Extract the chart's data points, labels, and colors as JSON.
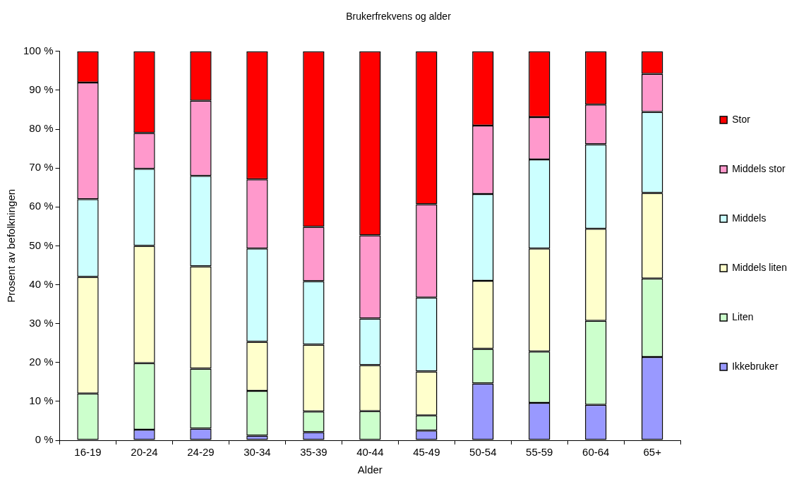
{
  "chart_data": {
    "type": "bar",
    "title": "Brukerfrekvens og alder",
    "xlabel": "Alder",
    "ylabel": "Prosent av befolkningen",
    "categories": [
      "16-19",
      "20-24",
      "24-29",
      "30-34",
      "35-39",
      "40-44",
      "45-49",
      "50-54",
      "55-59",
      "60-64",
      "65+"
    ],
    "stacked": true,
    "legend": "right",
    "grid": false,
    "ylim": [
      0,
      100
    ],
    "yticks": [
      {
        "value": 0,
        "label": "0 %"
      },
      {
        "value": 10,
        "label": "10 %"
      },
      {
        "value": 20,
        "label": "20 %"
      },
      {
        "value": 30,
        "label": "30 %"
      },
      {
        "value": 40,
        "label": "40 %"
      },
      {
        "value": 50,
        "label": "50 %"
      },
      {
        "value": 60,
        "label": "60 %"
      },
      {
        "value": 70,
        "label": "70 %"
      },
      {
        "value": 80,
        "label": "80 %"
      },
      {
        "value": 90,
        "label": "90 %"
      },
      {
        "value": 100,
        "label": "100 %"
      }
    ],
    "series": [
      {
        "name": "Ikkebruker",
        "color": "#9999ff",
        "values": [
          0,
          2.7,
          3,
          1.2,
          2.1,
          0,
          2.5,
          14.6,
          9.6,
          9.1,
          21.4
        ]
      },
      {
        "name": "Liten",
        "color": "#ccffcc",
        "values": [
          12,
          17.1,
          15.4,
          11.5,
          5.3,
          7.5,
          3.9,
          8.9,
          13.2,
          21.6,
          20.2
        ]
      },
      {
        "name": "Middels liten",
        "color": "#ffffcc",
        "values": [
          30,
          30.2,
          26.3,
          12.6,
          17.2,
          11.8,
          11.3,
          17.5,
          26.5,
          23.7,
          22
        ]
      },
      {
        "name": "Middels",
        "color": "#ccffff",
        "values": [
          20,
          19.8,
          23.3,
          24,
          16.3,
          12,
          19,
          22.3,
          22.9,
          21.7,
          20.8
        ]
      },
      {
        "name": "Middels stor",
        "color": "#ff99cc",
        "values": [
          30,
          9.2,
          19.3,
          17.8,
          14,
          21.4,
          24,
          17.6,
          10.9,
          10.2,
          9.8
        ]
      },
      {
        "name": "Stor",
        "color": "#ff0000",
        "values": [
          8,
          21,
          12.7,
          32.9,
          45.1,
          47.3,
          39.3,
          19.1,
          16.9,
          13.7,
          5.8
        ]
      }
    ]
  }
}
